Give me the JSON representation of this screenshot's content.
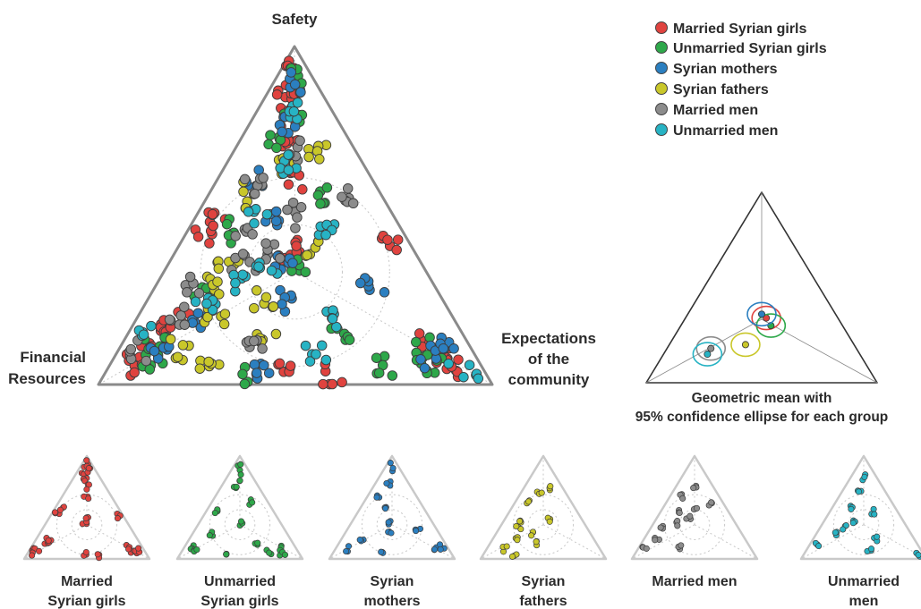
{
  "chart_data": {
    "type": "scatter",
    "subtype": "ternary",
    "vertex_labels": {
      "top": [
        "Safety"
      ],
      "left": [
        "Financial",
        "Resources"
      ],
      "right": [
        "Expectations",
        "of the",
        "community"
      ]
    },
    "series": [
      {
        "name": "Married Syrian girls",
        "color": "#e0433f",
        "points": [
          [
            0.85,
            0.1,
            0.05
          ],
          [
            0.92,
            0.05,
            0.03
          ],
          [
            0.78,
            0.12,
            0.1
          ],
          [
            0.88,
            0.06,
            0.06
          ],
          [
            0.1,
            0.85,
            0.05
          ],
          [
            0.06,
            0.88,
            0.06
          ],
          [
            0.15,
            0.75,
            0.1
          ],
          [
            0.2,
            0.7,
            0.1
          ],
          [
            0.05,
            0.1,
            0.85
          ],
          [
            0.08,
            0.05,
            0.87
          ],
          [
            0.12,
            0.1,
            0.78
          ],
          [
            0.35,
            0.35,
            0.3
          ],
          [
            0.4,
            0.3,
            0.3
          ],
          [
            0.45,
            0.5,
            0.05
          ],
          [
            0.5,
            0.45,
            0.05
          ],
          [
            0.42,
            0.05,
            0.53
          ],
          [
            0.6,
            0.2,
            0.2
          ],
          [
            0.05,
            0.5,
            0.45
          ],
          [
            0.03,
            0.4,
            0.57
          ],
          [
            0.7,
            0.15,
            0.15
          ]
        ],
        "mean": [
          0.34,
          0.31,
          0.35
        ]
      },
      {
        "name": "Unmarried Syrian girls",
        "color": "#2ea84a",
        "points": [
          [
            0.9,
            0.05,
            0.05
          ],
          [
            0.8,
            0.1,
            0.1
          ],
          [
            0.7,
            0.2,
            0.1
          ],
          [
            0.12,
            0.8,
            0.08
          ],
          [
            0.08,
            0.82,
            0.1
          ],
          [
            0.1,
            0.12,
            0.78
          ],
          [
            0.06,
            0.14,
            0.8
          ],
          [
            0.35,
            0.32,
            0.33
          ],
          [
            0.45,
            0.45,
            0.1
          ],
          [
            0.15,
            0.3,
            0.55
          ],
          [
            0.03,
            0.6,
            0.37
          ],
          [
            0.55,
            0.15,
            0.3
          ],
          [
            0.25,
            0.6,
            0.15
          ],
          [
            0.06,
            0.25,
            0.69
          ]
        ],
        "mean": [
          0.3,
          0.31,
          0.39
        ]
      },
      {
        "name": "Syrian mothers",
        "color": "#2b7fc0",
        "points": [
          [
            0.88,
            0.07,
            0.05
          ],
          [
            0.75,
            0.15,
            0.1
          ],
          [
            0.6,
            0.3,
            0.1
          ],
          [
            0.1,
            0.8,
            0.1
          ],
          [
            0.2,
            0.65,
            0.15
          ],
          [
            0.08,
            0.12,
            0.8
          ],
          [
            0.12,
            0.06,
            0.82
          ],
          [
            0.35,
            0.36,
            0.29
          ],
          [
            0.5,
            0.3,
            0.2
          ],
          [
            0.05,
            0.55,
            0.4
          ],
          [
            0.25,
            0.4,
            0.35
          ],
          [
            0.3,
            0.15,
            0.55
          ]
        ],
        "mean": [
          0.36,
          0.32,
          0.32
        ]
      },
      {
        "name": "Syrian fathers",
        "color": "#c9c72a",
        "points": [
          [
            0.65,
            0.2,
            0.15
          ],
          [
            0.7,
            0.1,
            0.2
          ],
          [
            0.55,
            0.35,
            0.1
          ],
          [
            0.3,
            0.55,
            0.15
          ],
          [
            0.2,
            0.6,
            0.2
          ],
          [
            0.1,
            0.75,
            0.15
          ],
          [
            0.35,
            0.5,
            0.15
          ],
          [
            0.4,
            0.25,
            0.35
          ],
          [
            0.15,
            0.5,
            0.35
          ],
          [
            0.05,
            0.7,
            0.25
          ],
          [
            0.25,
            0.45,
            0.3
          ]
        ],
        "mean": [
          0.2,
          0.47,
          0.33
        ]
      },
      {
        "name": "Married men",
        "color": "#8c8c8c",
        "points": [
          [
            0.7,
            0.15,
            0.15
          ],
          [
            0.6,
            0.3,
            0.1
          ],
          [
            0.45,
            0.4,
            0.15
          ],
          [
            0.3,
            0.6,
            0.1
          ],
          [
            0.1,
            0.85,
            0.05
          ],
          [
            0.2,
            0.7,
            0.1
          ],
          [
            0.5,
            0.25,
            0.25
          ],
          [
            0.35,
            0.45,
            0.2
          ],
          [
            0.12,
            0.55,
            0.33
          ],
          [
            0.4,
            0.35,
            0.25
          ],
          [
            0.55,
            0.1,
            0.35
          ]
        ],
        "mean": [
          0.18,
          0.63,
          0.19
        ]
      },
      {
        "name": "Unmarried men",
        "color": "#27b3c4",
        "points": [
          [
            0.8,
            0.1,
            0.1
          ],
          [
            0.65,
            0.2,
            0.15
          ],
          [
            0.5,
            0.35,
            0.15
          ],
          [
            0.15,
            0.8,
            0.05
          ],
          [
            0.25,
            0.6,
            0.15
          ],
          [
            0.05,
            0.05,
            0.9
          ],
          [
            0.3,
            0.5,
            0.2
          ],
          [
            0.45,
            0.2,
            0.35
          ],
          [
            0.1,
            0.4,
            0.5
          ],
          [
            0.35,
            0.4,
            0.25
          ],
          [
            0.2,
            0.3,
            0.5
          ]
        ],
        "mean": [
          0.15,
          0.66,
          0.19
        ]
      }
    ],
    "grid": true,
    "legend_position": "top-right",
    "inset_caption": [
      "Geometric mean with",
      "95% confidence ellipse for each group"
    ],
    "small_multiple_labels": [
      [
        "Married",
        "Syrian girls"
      ],
      [
        "Unmarried",
        "Syrian girls"
      ],
      [
        "Syrian",
        "mothers"
      ],
      [
        "Syrian",
        "fathers"
      ],
      [
        "Married men"
      ],
      [
        "Unmarried",
        "men"
      ]
    ]
  }
}
